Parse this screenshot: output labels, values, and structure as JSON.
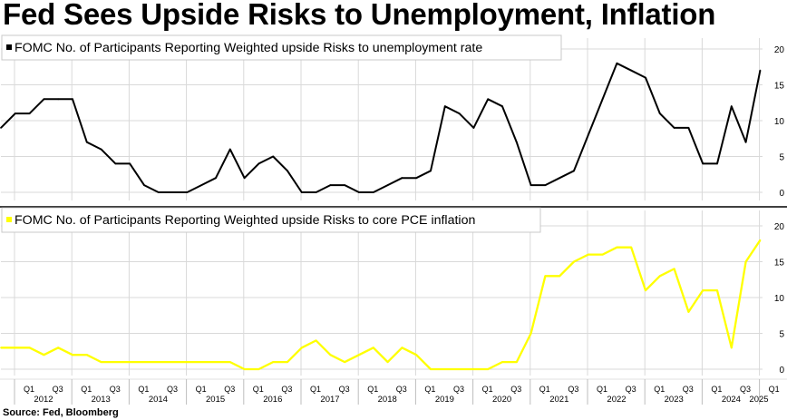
{
  "title": "Fed Sees Upside Risks to Unemployment, Inflation",
  "source": "Source: Fed, Bloomberg",
  "colors": {
    "unemployment": "#000000",
    "inflation": "#ffff00",
    "background": "#ffffff",
    "grid": "#d9d9d9"
  },
  "chart_data": [
    {
      "type": "line",
      "title": "",
      "legend": "top-left",
      "grid": true,
      "ylim": [
        0,
        20
      ],
      "yticks": [
        "0",
        "5",
        "10",
        "15",
        "20"
      ],
      "x": [
        "2011 Q4",
        "2012 Q1",
        "2012 Q2",
        "2012 Q3",
        "2012 Q4",
        "2013 Q1",
        "2013 Q2",
        "2013 Q3",
        "2013 Q4",
        "2014 Q1",
        "2014 Q2",
        "2014 Q3",
        "2014 Q4",
        "2015 Q1",
        "2015 Q2",
        "2015 Q3",
        "2015 Q4",
        "2016 Q1",
        "2016 Q2",
        "2016 Q3",
        "2016 Q4",
        "2017 Q1",
        "2017 Q2",
        "2017 Q3",
        "2017 Q4",
        "2018 Q1",
        "2018 Q2",
        "2018 Q3",
        "2018 Q4",
        "2019 Q1",
        "2019 Q2",
        "2019 Q3",
        "2019 Q4",
        "2020 Q1",
        "2020 Q2",
        "2020 Q3",
        "2020 Q4",
        "2021 Q1",
        "2021 Q2",
        "2021 Q3",
        "2021 Q4",
        "2022 Q1",
        "2022 Q2",
        "2022 Q3",
        "2022 Q4",
        "2023 Q1",
        "2023 Q2",
        "2023 Q3",
        "2023 Q4",
        "2024 Q1",
        "2024 Q2",
        "2024 Q3",
        "2024 Q4",
        "2025 Q1"
      ],
      "series": [
        {
          "name": "FOMC No. of Participants Reporting Weighted upside Risks to unemployment rate",
          "color": "#000000",
          "values": [
            9,
            11,
            11,
            13,
            13,
            13,
            7,
            6,
            4,
            4,
            1,
            0,
            0,
            0,
            1,
            2,
            6,
            2,
            4,
            5,
            3,
            0,
            0,
            1,
            1,
            0,
            0,
            1,
            2,
            2,
            3,
            12,
            11,
            9,
            13,
            12,
            7,
            1,
            1,
            2,
            3,
            8,
            13,
            18,
            17,
            16,
            11,
            9,
            9,
            4,
            4,
            12,
            7,
            17
          ]
        }
      ]
    },
    {
      "type": "line",
      "title": "",
      "legend": "top-left",
      "grid": true,
      "ylim": [
        0,
        20
      ],
      "yticks": [
        "0",
        "5",
        "10",
        "15",
        "20"
      ],
      "x": [
        "2011 Q4",
        "2012 Q1",
        "2012 Q2",
        "2012 Q3",
        "2012 Q4",
        "2013 Q1",
        "2013 Q2",
        "2013 Q3",
        "2013 Q4",
        "2014 Q1",
        "2014 Q2",
        "2014 Q3",
        "2014 Q4",
        "2015 Q1",
        "2015 Q2",
        "2015 Q3",
        "2015 Q4",
        "2016 Q1",
        "2016 Q2",
        "2016 Q3",
        "2016 Q4",
        "2017 Q1",
        "2017 Q2",
        "2017 Q3",
        "2017 Q4",
        "2018 Q1",
        "2018 Q2",
        "2018 Q3",
        "2018 Q4",
        "2019 Q1",
        "2019 Q2",
        "2019 Q3",
        "2019 Q4",
        "2020 Q1",
        "2020 Q2",
        "2020 Q3",
        "2020 Q4",
        "2021 Q1",
        "2021 Q2",
        "2021 Q3",
        "2021 Q4",
        "2022 Q1",
        "2022 Q2",
        "2022 Q3",
        "2022 Q4",
        "2023 Q1",
        "2023 Q2",
        "2023 Q3",
        "2023 Q4",
        "2024 Q1",
        "2024 Q2",
        "2024 Q3",
        "2024 Q4",
        "2025 Q1"
      ],
      "series": [
        {
          "name": "FOMC No. of Participants Reporting Weighted upside Risks to core PCE inflation",
          "color": "#ffff00",
          "values": [
            3,
            3,
            3,
            2,
            3,
            2,
            2,
            1,
            1,
            1,
            1,
            1,
            1,
            1,
            1,
            1,
            1,
            0,
            0,
            1,
            1,
            3,
            4,
            2,
            1,
            2,
            3,
            1,
            3,
            2,
            0,
            0,
            0,
            0,
            0,
            1,
            1,
            5,
            13,
            13,
            15,
            16,
            16,
            17,
            17,
            11,
            13,
            14,
            8,
            11,
            11,
            3,
            15,
            18
          ]
        }
      ]
    }
  ],
  "x_axis": {
    "quarter_labels": [
      "Q1",
      "Q3",
      "Q1",
      "Q3",
      "Q1",
      "Q3",
      "Q1",
      "Q3",
      "Q1",
      "Q3",
      "Q1",
      "Q3",
      "Q1",
      "Q3",
      "Q1",
      "Q3",
      "Q1",
      "Q3",
      "Q1",
      "Q3",
      "Q1",
      "Q3",
      "Q1",
      "Q3",
      "Q1",
      "Q3",
      "Q1"
    ],
    "year_labels": [
      "2012",
      "2013",
      "2014",
      "2015",
      "2016",
      "2017",
      "2018",
      "2019",
      "2020",
      "2021",
      "2022",
      "2023",
      "2024",
      "2025"
    ]
  }
}
